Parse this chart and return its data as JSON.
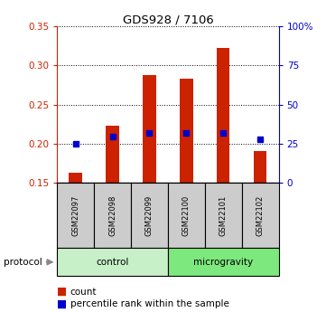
{
  "title": "GDS928 / 7106",
  "samples": [
    "GSM22097",
    "GSM22098",
    "GSM22099",
    "GSM22100",
    "GSM22101",
    "GSM22102"
  ],
  "count_values": [
    0.163,
    0.223,
    0.288,
    0.283,
    0.323,
    0.19
  ],
  "percentile_values": [
    0.2,
    0.209,
    0.214,
    0.213,
    0.214,
    0.205
  ],
  "ylim_left": [
    0.15,
    0.35
  ],
  "ylim_right": [
    0,
    100
  ],
  "yticks_left": [
    0.15,
    0.2,
    0.25,
    0.3,
    0.35
  ],
  "yticks_right": [
    0,
    25,
    50,
    75,
    100
  ],
  "ytick_labels_right": [
    "0",
    "25",
    "50",
    "75",
    "100%"
  ],
  "groups": [
    {
      "label": "control",
      "indices": [
        0,
        1,
        2
      ],
      "color": "#c8f0c8"
    },
    {
      "label": "microgravity",
      "indices": [
        3,
        4,
        5
      ],
      "color": "#7de87d"
    }
  ],
  "protocol_label": "protocol",
  "bar_color": "#cc2200",
  "percentile_color": "#0000cc",
  "bar_width": 0.35,
  "background_color": "#ffffff",
  "sample_box_color": "#cccccc",
  "legend_items": [
    "count",
    "percentile rank within the sample"
  ]
}
